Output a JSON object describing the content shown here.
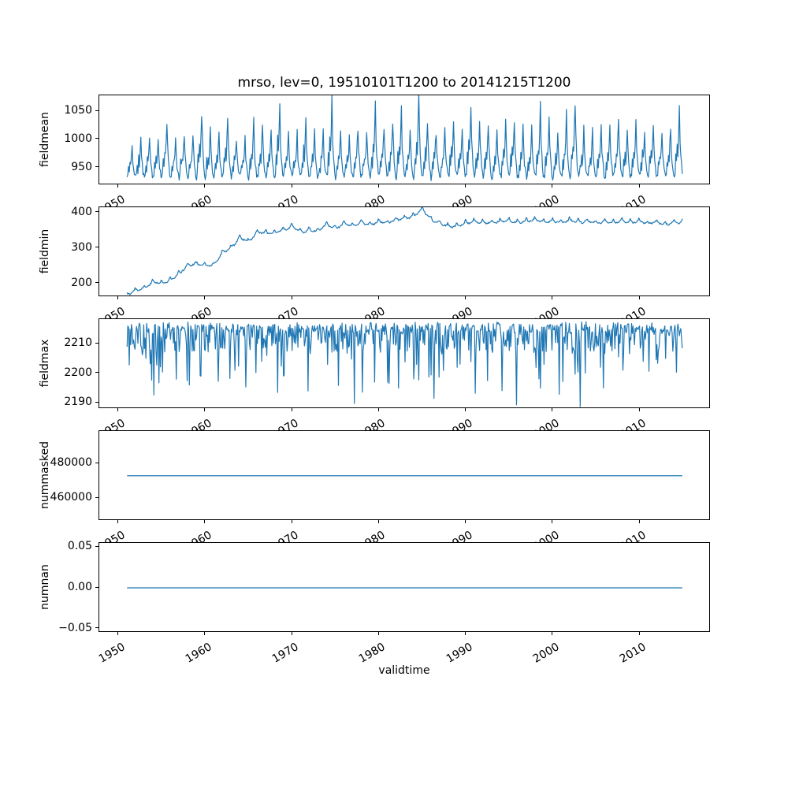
{
  "chart_data": {
    "type": "line",
    "title": "mrso, lev=0, 19510101T1200 to 20141215T1200",
    "xlabel": "validtime",
    "line_color": "#1f77b4",
    "grid": false,
    "legend": "none",
    "x_domain": [
      1947.8,
      2018.2
    ],
    "x_data_range": [
      1951.0,
      2014.92
    ],
    "points_per_year": 12,
    "xticks": [
      {
        "value": 1950,
        "label": "1950"
      },
      {
        "value": 1960,
        "label": "1960"
      },
      {
        "value": 1970,
        "label": "1970"
      },
      {
        "value": 1980,
        "label": "1980"
      },
      {
        "value": 1990,
        "label": "1990"
      },
      {
        "value": 2000,
        "label": "2000"
      },
      {
        "value": 2010,
        "label": "2010"
      }
    ],
    "subplots": [
      {
        "name": "fieldmean",
        "ylabel": "fieldmean",
        "ylim": [
          919,
          1078
        ],
        "yticks": [
          {
            "value": 950,
            "label": "950"
          },
          {
            "value": 1000,
            "label": "1000"
          },
          {
            "value": 1050,
            "label": "1050"
          }
        ],
        "model": {
          "kind": "seasonal",
          "base": 933,
          "noise": 6,
          "seed": 11,
          "seasonal_shape": [
            0.0,
            0.06,
            0.3,
            0.18,
            0.46,
            0.34,
            0.62,
            1.0,
            0.52,
            0.3,
            0.16,
            0.05
          ],
          "peaks_by_year": [
            990,
            1002,
            1010,
            1006,
            1036,
            1000,
            1022,
            1012,
            1058,
            1020,
            1015,
            1046,
            1010,
            1006,
            1030,
            1036,
            1020,
            1071,
            1026,
            1012,
            1036,
            1018,
            1015,
            1071,
            1020,
            1008,
            1030,
            1016,
            1062,
            1030,
            1036,
            1050,
            1026,
            1071,
            1038,
            1020,
            1018,
            1036,
            1022,
            1066,
            1036,
            1030,
            1015,
            1028,
            1042,
            1020,
            1018,
            1056,
            1030,
            1012,
            1036,
            1066,
            1020,
            1015,
            1030,
            1022,
            1040,
            1018,
            1030,
            1022,
            1032,
            1018,
            1026,
            1056
          ]
        }
      },
      {
        "name": "fieldmin",
        "ylabel": "fieldmin",
        "ylim": [
          162,
          415
        ],
        "yticks": [
          {
            "value": 200,
            "label": "200"
          },
          {
            "value": 300,
            "label": "300"
          },
          {
            "value": 400,
            "label": "400"
          }
        ],
        "model": {
          "kind": "trend",
          "season_amp": 7,
          "noise": 2.2,
          "seed": 22,
          "season_shape": [
            0.9,
            0.3,
            0.0,
            -0.2,
            -0.3,
            -0.35,
            -0.3,
            -0.2,
            -0.1,
            0.1,
            0.4,
            1.0
          ],
          "keyframes": [
            [
              1951,
              169
            ],
            [
              1952,
              182
            ],
            [
              1953,
              188
            ],
            [
              1954,
              205
            ],
            [
              1955,
              200
            ],
            [
              1956,
              210
            ],
            [
              1957,
              228
            ],
            [
              1958,
              252
            ],
            [
              1959,
              256
            ],
            [
              1960,
              250
            ],
            [
              1961,
              253
            ],
            [
              1962,
              288
            ],
            [
              1963,
              302
            ],
            [
              1964,
              330
            ],
            [
              1965,
              318
            ],
            [
              1966,
              345
            ],
            [
              1967,
              342
            ],
            [
              1968,
              344
            ],
            [
              1969,
              350
            ],
            [
              1970,
              362
            ],
            [
              1971,
              345
            ],
            [
              1972,
              350
            ],
            [
              1973,
              349
            ],
            [
              1974,
              368
            ],
            [
              1975,
              355
            ],
            [
              1976,
              370
            ],
            [
              1977,
              362
            ],
            [
              1978,
              372
            ],
            [
              1979,
              366
            ],
            [
              1980,
              375
            ],
            [
              1981,
              372
            ],
            [
              1982,
              380
            ],
            [
              1983,
              384
            ],
            [
              1984,
              390
            ],
            [
              1985,
              410
            ],
            [
              1986,
              380
            ],
            [
              1987,
              370
            ],
            [
              1988,
              362
            ],
            [
              1989,
              361
            ],
            [
              1990,
              371
            ],
            [
              1991,
              375
            ],
            [
              1992,
              371
            ],
            [
              1993,
              373
            ],
            [
              1994,
              376
            ],
            [
              1995,
              378
            ],
            [
              1996,
              372
            ],
            [
              1997,
              376
            ],
            [
              1998,
              380
            ],
            [
              1999,
              373
            ],
            [
              2000,
              376
            ],
            [
              2001,
              372
            ],
            [
              2002,
              379
            ],
            [
              2003,
              373
            ],
            [
              2004,
              376
            ],
            [
              2005,
              371
            ],
            [
              2006,
              375
            ],
            [
              2007,
              372
            ],
            [
              2008,
              378
            ],
            [
              2009,
              372
            ],
            [
              2010,
              376
            ],
            [
              2011,
              370
            ],
            [
              2012,
              374
            ],
            [
              2013,
              367
            ],
            [
              2014,
              372
            ]
          ]
        }
      },
      {
        "name": "fieldmax",
        "ylabel": "fieldmax",
        "ylim": [
          2187.9,
          2218.3
        ],
        "yticks": [
          {
            "value": 2190,
            "label": "2190"
          },
          {
            "value": 2200,
            "label": "2200"
          },
          {
            "value": 2210,
            "label": "2210"
          }
        ],
        "model": {
          "kind": "spikes",
          "base": 2217,
          "seed": 33,
          "deep_spikes": [
            [
              1953.2,
              2205
            ],
            [
              1956.7,
              2198
            ],
            [
              1958.2,
              2196
            ],
            [
              1963.4,
              2201
            ],
            [
              1966.5,
              2204
            ],
            [
              1968.3,
              2193.5
            ],
            [
              1971.8,
              2194
            ],
            [
              1974.1,
              2203
            ],
            [
              1977.2,
              2189.8
            ],
            [
              1979.5,
              2197
            ],
            [
              1981.2,
              2196.5
            ],
            [
              1984.3,
              2203
            ],
            [
              1986.3,
              2191.5
            ],
            [
              1989.0,
              2202
            ],
            [
              1992.5,
              2197.5
            ],
            [
              1995.8,
              2189.3
            ],
            [
              1999.0,
              2203
            ],
            [
              2003.2,
              2188.7
            ],
            [
              2005.5,
              2202
            ],
            [
              2008.1,
              2201
            ],
            [
              2010.4,
              2204
            ],
            [
              2013.0,
              2205
            ]
          ]
        }
      },
      {
        "name": "nummasked",
        "ylabel": "nummasked",
        "ylim": [
          446985,
          498815
        ],
        "yticks": [
          {
            "value": 460000,
            "label": "460000"
          },
          {
            "value": 480000,
            "label": "480000"
          }
        ],
        "model": {
          "kind": "constant",
          "value": 473000
        }
      },
      {
        "name": "numnan",
        "ylabel": "numnan",
        "ylim": [
          -0.055,
          0.055
        ],
        "yticks": [
          {
            "value": -0.05,
            "label": "−0.05"
          },
          {
            "value": 0,
            "label": "0.00"
          },
          {
            "value": 0.05,
            "label": "0.05"
          }
        ],
        "model": {
          "kind": "constant",
          "value": 0
        }
      }
    ]
  }
}
